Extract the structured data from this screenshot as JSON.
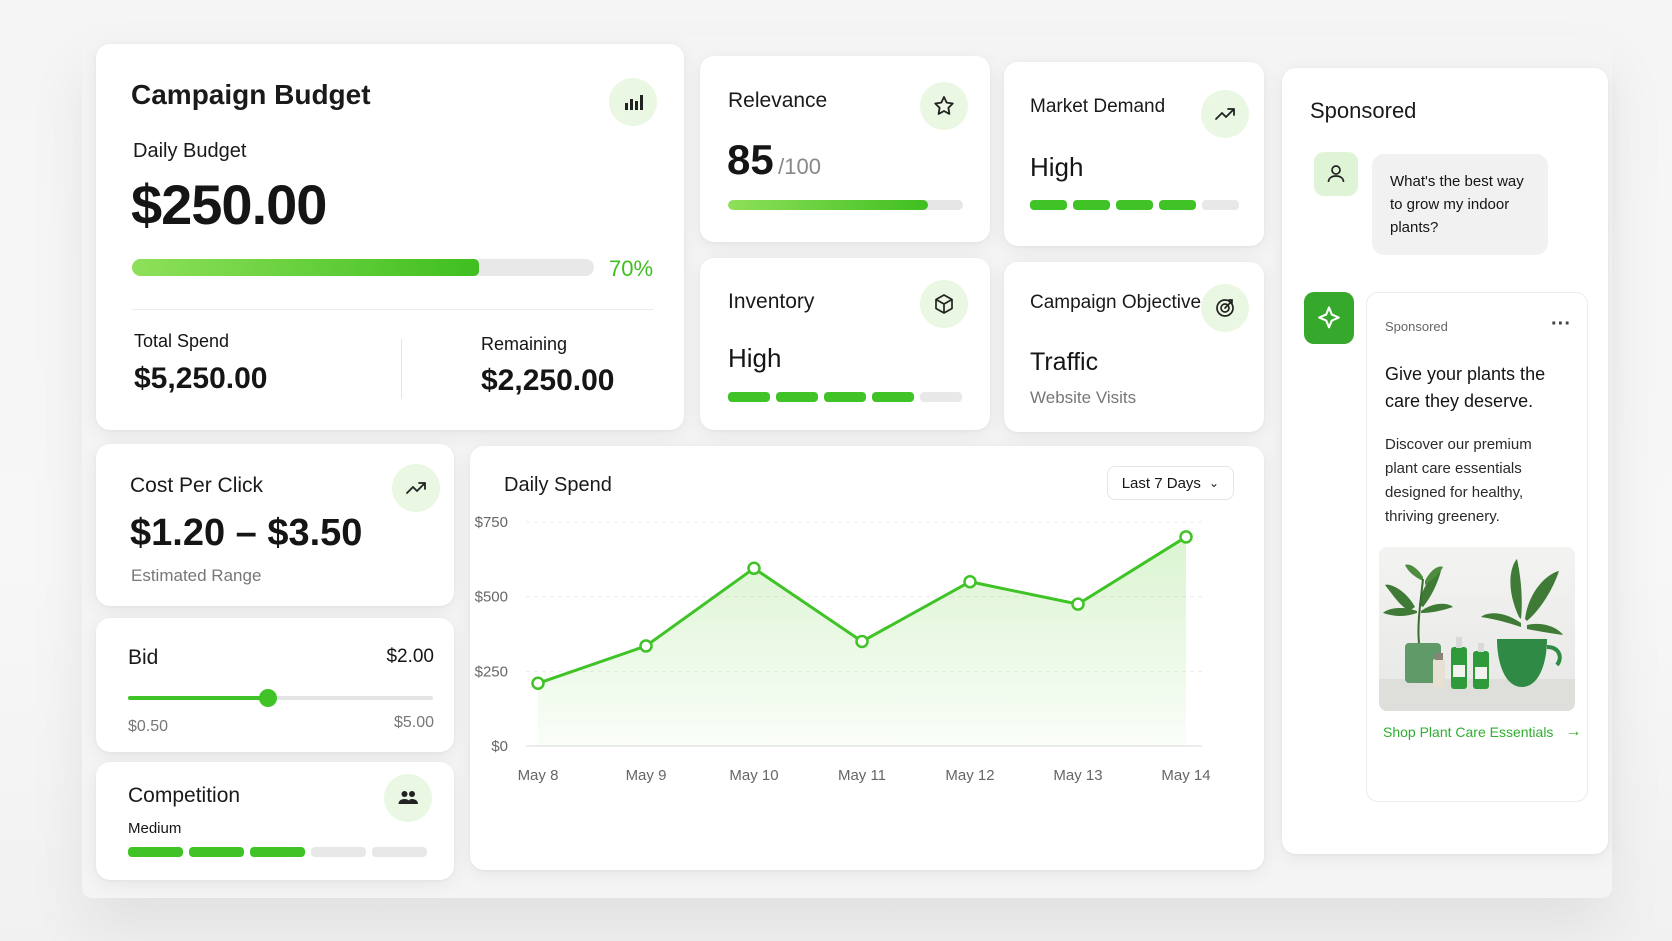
{
  "budget": {
    "title": "Campaign Budget",
    "daily_label": "Daily Budget",
    "daily_value": "$250.00",
    "progress_pct": "70%",
    "progress": 0.7,
    "total_label": "Total Spend",
    "total_value": "$5,250.00",
    "remaining_label": "Remaining",
    "remaining_value": "$2,250.00",
    "icon": "bar-chart-icon"
  },
  "relevance": {
    "title": "Relevance",
    "score": "85",
    "max": "/100",
    "progress": 0.85,
    "icon": "star-icon"
  },
  "market": {
    "title": "Market Demand",
    "value": "High",
    "level": 4,
    "of": 5,
    "icon": "trend-up-icon"
  },
  "inventory": {
    "title": "Inventory",
    "value": "High",
    "level": 4,
    "of": 5,
    "icon": "box-icon"
  },
  "objective": {
    "title": "Campaign Objective",
    "value": "Traffic",
    "sub": "Website Visits",
    "icon": "target-icon"
  },
  "cpc": {
    "title": "Cost Per Click",
    "value": "$1.20 – $3.50",
    "sub": "Estimated Range",
    "icon": "trend-up-icon"
  },
  "bid": {
    "title": "Bid",
    "value": "$2.00",
    "min": "$0.50",
    "max": "$5.00",
    "position": 0.33
  },
  "competition": {
    "title": "Competition",
    "value": "Medium",
    "level": 3,
    "of": 5,
    "icon": "people-icon"
  },
  "spend": {
    "title": "Daily Spend",
    "range_label": "Last 7 Days",
    "chart_data": {
      "type": "area",
      "title": "Daily Spend",
      "xlabel": "",
      "ylabel": "",
      "categories": [
        "May 8",
        "May 9",
        "May 10",
        "May 11",
        "May 12",
        "May 13",
        "May 14"
      ],
      "values": [
        210,
        335,
        595,
        350,
        550,
        475,
        700
      ],
      "ylim": [
        0,
        750
      ],
      "yticks": [
        "$0",
        "$250",
        "$500",
        "$750"
      ],
      "ytick_values": [
        0,
        250,
        500,
        750
      ],
      "grid": true,
      "color": "#3fc326"
    }
  },
  "sponsored": {
    "title": "Sponsored",
    "question": "What's the best way to grow my indoor plants?",
    "ad_label": "Sponsored",
    "more": "···",
    "headline": "Give your plants the care they deserve.",
    "body": "Discover our premium plant care essentials designed for healthy, thriving greenery.",
    "cta": "Shop Plant Care Essentials",
    "cta_arrow": "→"
  },
  "colors": {
    "accent": "#3fc326",
    "accent_light": "#eaf7e2",
    "text": "#151515",
    "muted": "#777777"
  }
}
